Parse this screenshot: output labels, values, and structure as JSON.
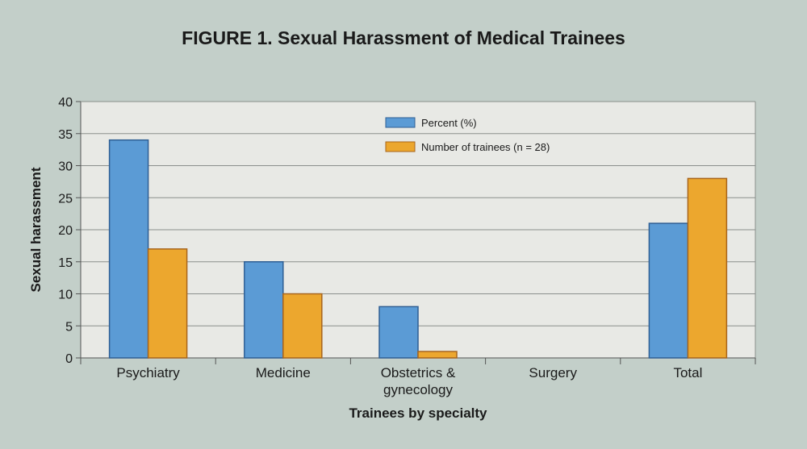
{
  "chart_data": {
    "type": "bar",
    "title": "FIGURE 1. Sexual Harassment of Medical Trainees",
    "xlabel": "Trainees by specialty",
    "ylabel": "Sexual harassment",
    "ylim": [
      0,
      40
    ],
    "yticks": [
      0,
      5,
      10,
      15,
      20,
      25,
      30,
      35,
      40
    ],
    "grid": true,
    "legend_position": "top-center",
    "categories": [
      [
        "Psychiatry"
      ],
      [
        "Medicine"
      ],
      [
        "Obstetrics &",
        "gynecology"
      ],
      [
        "Surgery"
      ],
      [
        "Total"
      ]
    ],
    "series": [
      {
        "name": "Percent (%)",
        "color": "#5b9bd5",
        "stroke": "#2f5f94",
        "values": [
          34,
          15,
          8,
          0,
          21
        ]
      },
      {
        "name": "Number of trainees (n = 28)",
        "color": "#eca72e",
        "stroke": "#a8651c",
        "values": [
          17,
          10,
          1,
          0,
          28
        ]
      }
    ]
  }
}
